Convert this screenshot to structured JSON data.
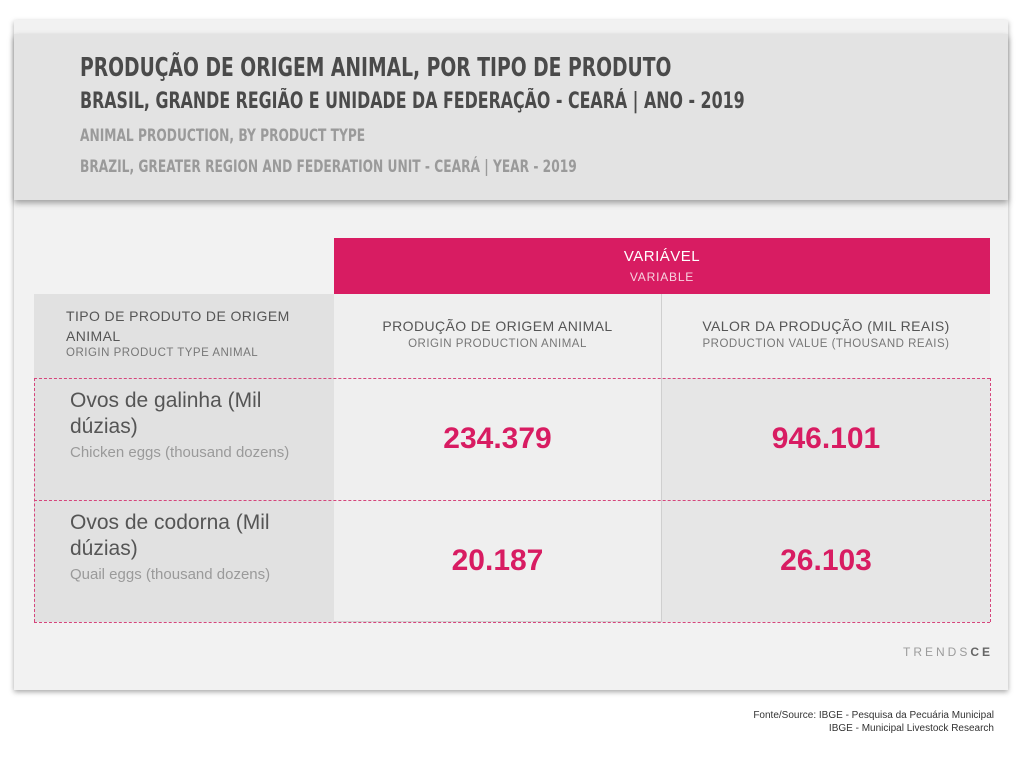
{
  "header": {
    "title_pt": "PRODUÇÃO DE ORIGEM ANIMAL, POR TIPO DE PRODUTO",
    "subtitle_pt": "BRASIL, GRANDE REGIÃO E UNIDADE DA FEDERAÇÃO - CEARÁ | ANO - 2019",
    "title_en": "ANIMAL PRODUCTION, BY PRODUCT TYPE",
    "subtitle_en": "BRAZIL, GREATER REGION AND FEDERATION UNIT - CEARÁ | YEAR - 2019"
  },
  "table": {
    "variable_header_pt": "VARIÁVEL",
    "variable_header_en": "VARIABLE",
    "row_header_pt": "TIPO DE PRODUTO DE ORIGEM ANIMAL",
    "row_header_en": "ORIGIN PRODUCT TYPE ANIMAL",
    "columns": [
      {
        "pt": "PRODUÇÃO DE ORIGEM ANIMAL",
        "en": "ORIGIN PRODUCTION ANIMAL"
      },
      {
        "pt": "VALOR DA PRODUÇÃO (MIL REAIS)",
        "en": "PRODUCTION VALUE (THOUSAND REAIS)"
      }
    ],
    "rows": [
      {
        "label_pt": "Ovos de galinha (Mil dúzias)",
        "label_en": "Chicken eggs (thousand dozens)",
        "values": [
          "234.379",
          "946.101"
        ]
      },
      {
        "label_pt": "Ovos de codorna (Mil dúzias)",
        "label_en": "Quail eggs (thousand dozens)",
        "values": [
          "20.187",
          "26.103"
        ]
      }
    ]
  },
  "brand": {
    "part1": "TRENDS",
    "part2": "CE"
  },
  "source": {
    "line1": "Fonte/Source: IBGE - Pesquisa da Pecuária Municipal",
    "line2": "IBGE - Municipal Livestock Research"
  },
  "colors": {
    "accent": "#d81c62",
    "header_bg": "#e3e3e3",
    "card_bg": "#f2f2f2"
  }
}
